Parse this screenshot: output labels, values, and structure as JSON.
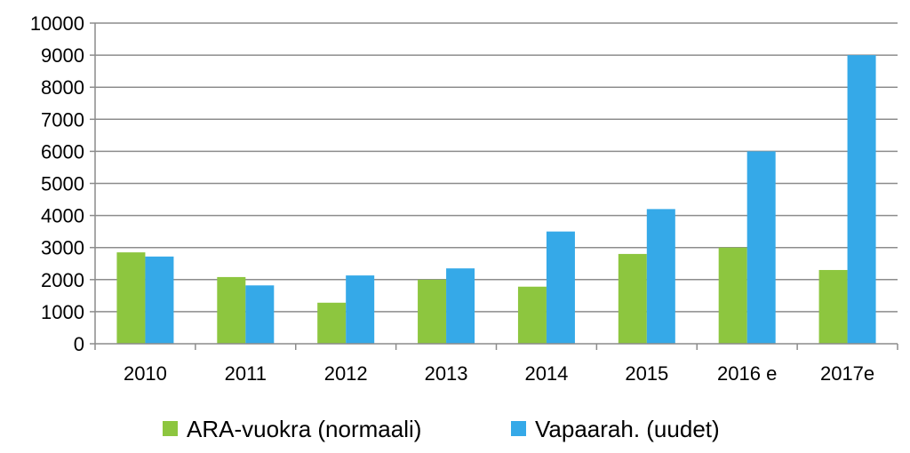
{
  "chart_data": {
    "type": "bar",
    "title": "",
    "xlabel": "",
    "ylabel": "",
    "categories": [
      "2010",
      "2011",
      "2012",
      "2013",
      "2014",
      "2015",
      "2016 e",
      "2017e"
    ],
    "series": [
      {
        "name": "ARA-vuokra (normaali)",
        "color": "#8dc63f",
        "values": [
          2850,
          2080,
          1280,
          2000,
          1780,
          2800,
          3000,
          2300
        ]
      },
      {
        "name": "Vapaarah. (uudet)",
        "color": "#35a9e8",
        "values": [
          2720,
          1820,
          2130,
          2350,
          3500,
          4200,
          6000,
          9000
        ]
      }
    ],
    "ylim": [
      0,
      10000
    ],
    "yticks": [
      0,
      1000,
      2000,
      3000,
      4000,
      5000,
      6000,
      7000,
      8000,
      9000,
      10000
    ],
    "grid": true,
    "legend_position": "bottom"
  }
}
